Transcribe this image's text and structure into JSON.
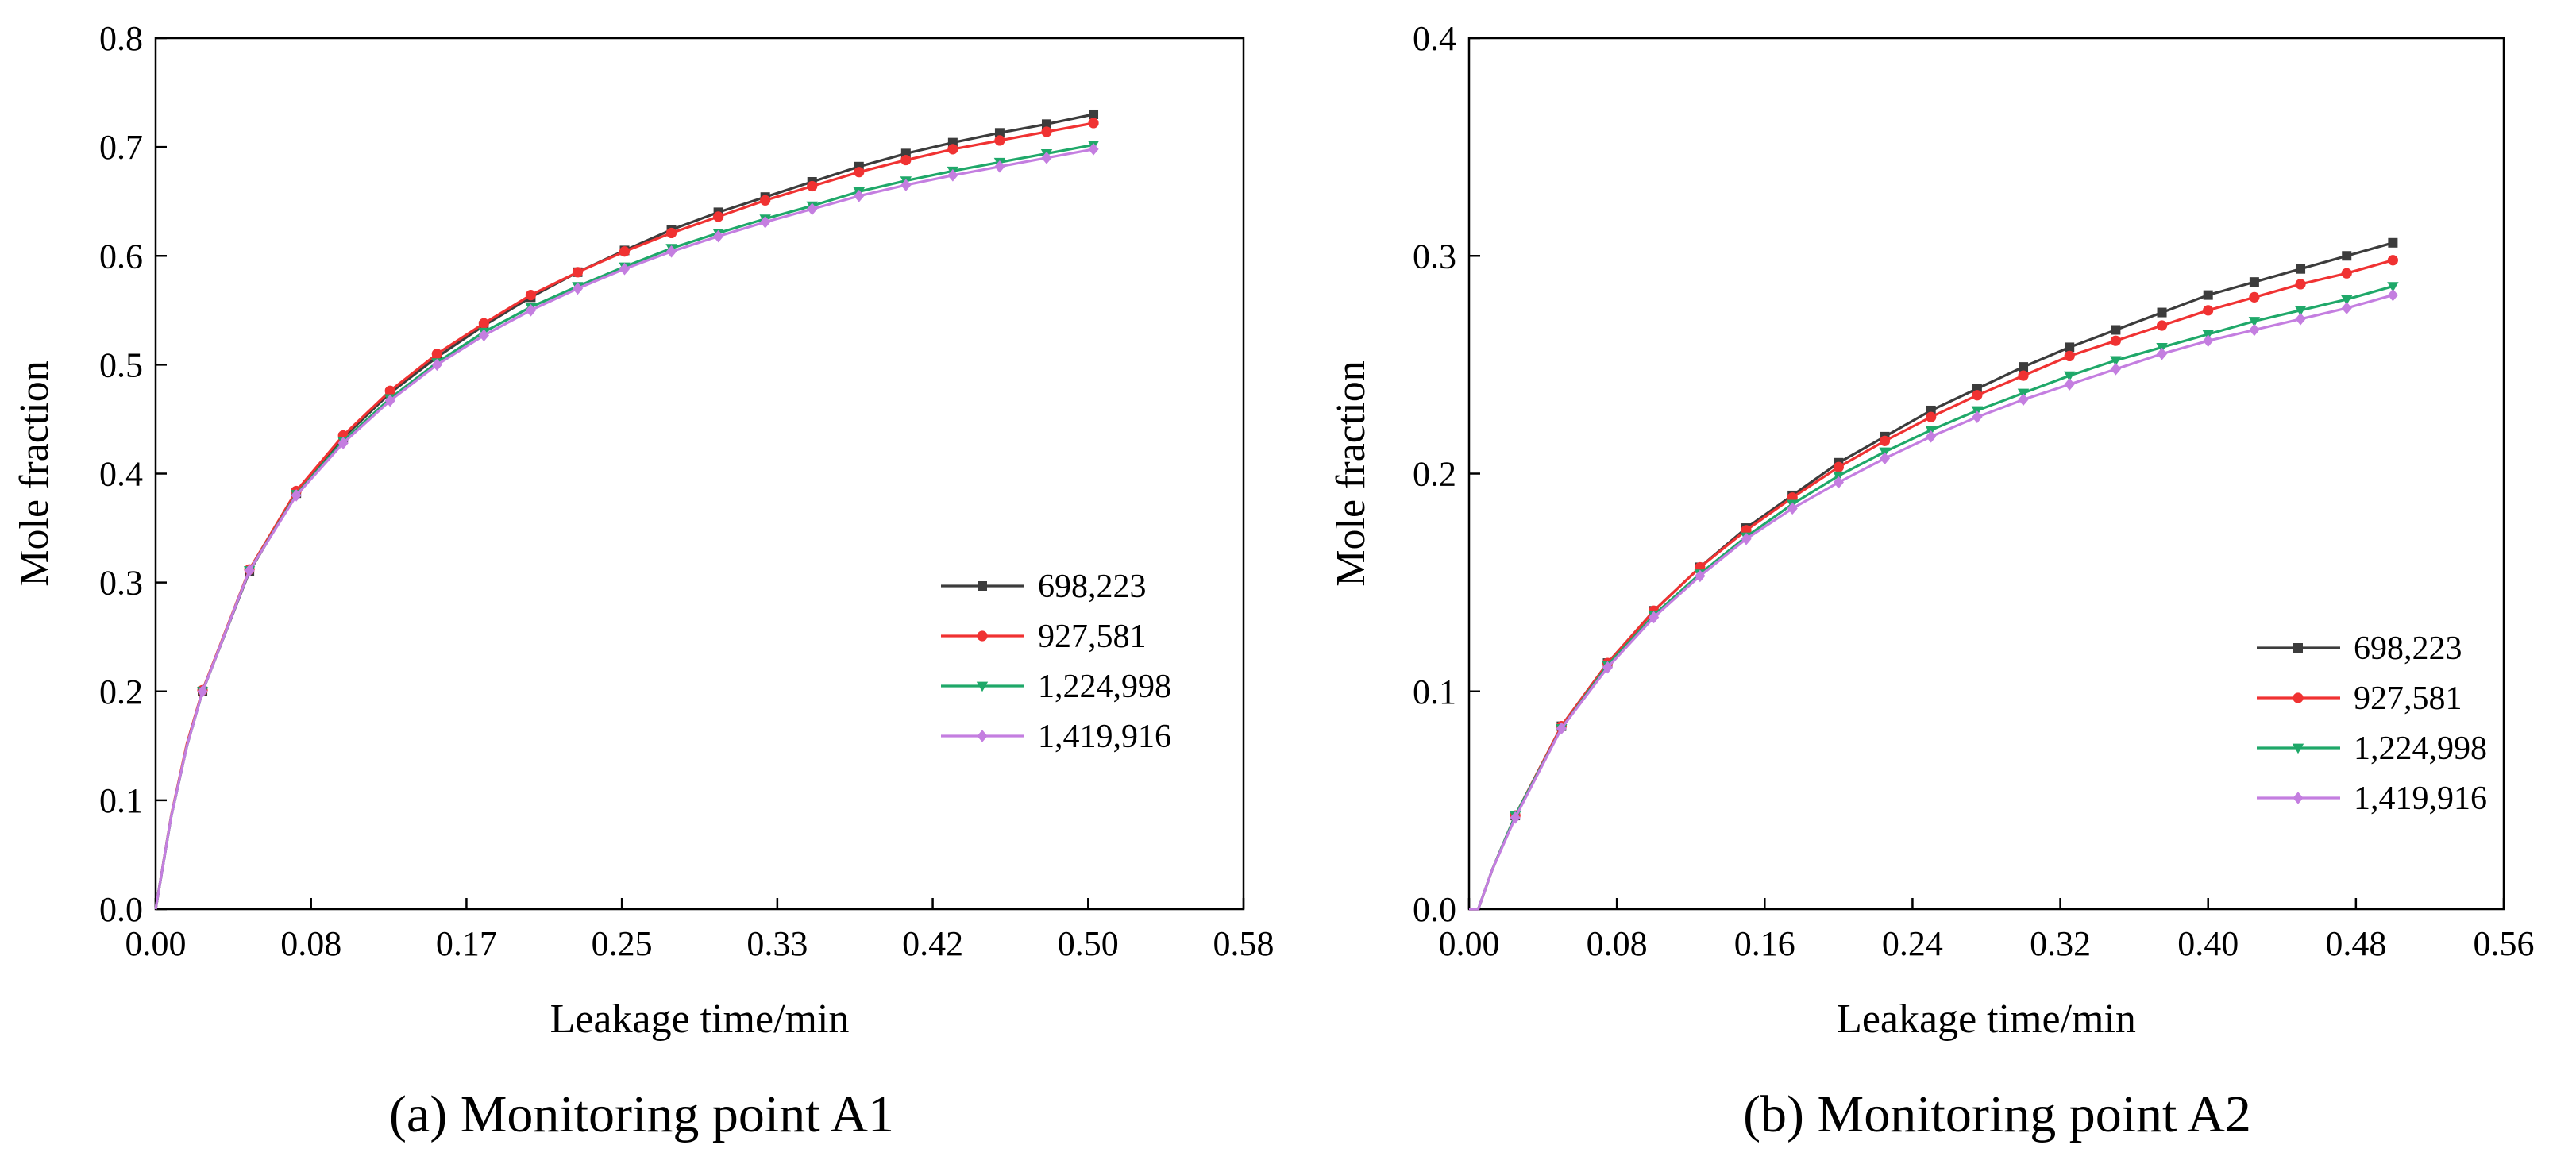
{
  "figure": {
    "captions": [
      "(a) Monitoring point A1",
      "(b) Monitoring point A2"
    ]
  },
  "chart_data": [
    {
      "type": "line",
      "title": "",
      "caption": "(a) Monitoring point A1",
      "xlabel": "Leakage time/min",
      "ylabel": "Mole fraction",
      "xlim": [
        0.0,
        0.58
      ],
      "ylim": [
        0.0,
        0.8
      ],
      "xticks": [
        "0.00",
        "0.08",
        "0.17",
        "0.25",
        "0.33",
        "0.42",
        "0.50",
        "0.58"
      ],
      "yticks": [
        "0.0",
        "0.1",
        "0.2",
        "0.3",
        "0.4",
        "0.5",
        "0.6",
        "0.7",
        "0.8"
      ],
      "legend_position": "bottom-right",
      "x": [
        0.0,
        0.0083,
        0.0167,
        0.025,
        0.05,
        0.075,
        0.1,
        0.125,
        0.15,
        0.175,
        0.2,
        0.225,
        0.25,
        0.275,
        0.3,
        0.325,
        0.35,
        0.375,
        0.4,
        0.425,
        0.45,
        0.475,
        0.5
      ],
      "series": [
        {
          "name": "698,223",
          "color": "#3c3c3c",
          "marker": "square",
          "values": [
            0.0,
            0.085,
            0.15,
            0.2,
            0.31,
            0.382,
            0.433,
            0.474,
            0.507,
            0.536,
            0.562,
            0.585,
            0.605,
            0.624,
            0.64,
            0.654,
            0.668,
            0.682,
            0.694,
            0.704,
            0.713,
            0.721,
            0.73
          ]
        },
        {
          "name": "927,581",
          "color": "#f03232",
          "marker": "circle",
          "values": [
            0.0,
            0.086,
            0.152,
            0.201,
            0.312,
            0.384,
            0.435,
            0.476,
            0.51,
            0.538,
            0.564,
            0.585,
            0.604,
            0.621,
            0.636,
            0.651,
            0.664,
            0.677,
            0.688,
            0.698,
            0.706,
            0.714,
            0.722
          ]
        },
        {
          "name": "1,224,998",
          "color": "#1fa869",
          "marker": "triangle-down",
          "values": [
            0.0,
            0.085,
            0.15,
            0.2,
            0.311,
            0.381,
            0.43,
            0.469,
            0.502,
            0.53,
            0.553,
            0.572,
            0.59,
            0.607,
            0.621,
            0.634,
            0.646,
            0.659,
            0.669,
            0.678,
            0.686,
            0.694,
            0.702
          ]
        },
        {
          "name": "1,419,916",
          "color": "#c47ee0",
          "marker": "diamond",
          "values": [
            0.0,
            0.085,
            0.15,
            0.2,
            0.311,
            0.38,
            0.428,
            0.467,
            0.5,
            0.527,
            0.55,
            0.57,
            0.588,
            0.604,
            0.618,
            0.631,
            0.643,
            0.655,
            0.665,
            0.674,
            0.682,
            0.69,
            0.698
          ]
        }
      ]
    },
    {
      "type": "line",
      "title": "",
      "caption": "(b) Monitoring point A2",
      "xlabel": "Leakage time/min",
      "ylabel": "Mole fraction",
      "xlim": [
        0.0,
        0.56
      ],
      "ylim": [
        0.0,
        0.4
      ],
      "xticks": [
        "0.00",
        "0.08",
        "0.16",
        "0.24",
        "0.32",
        "0.40",
        "0.48",
        "0.56"
      ],
      "yticks": [
        "0.0",
        "0.1",
        "0.2",
        "0.3",
        "0.4"
      ],
      "legend_position": "bottom-right",
      "x": [
        0.0,
        0.005,
        0.0125,
        0.025,
        0.05,
        0.075,
        0.1,
        0.125,
        0.15,
        0.175,
        0.2,
        0.225,
        0.25,
        0.275,
        0.3,
        0.325,
        0.35,
        0.375,
        0.4,
        0.425,
        0.45,
        0.475,
        0.5
      ],
      "series": [
        {
          "name": "698,223",
          "color": "#3c3c3c",
          "marker": "square",
          "values": [
            0.0,
            0.0,
            0.018,
            0.043,
            0.084,
            0.113,
            0.137,
            0.157,
            0.175,
            0.19,
            0.205,
            0.217,
            0.229,
            0.239,
            0.249,
            0.258,
            0.266,
            0.274,
            0.282,
            0.288,
            0.294,
            0.3,
            0.306
          ]
        },
        {
          "name": "927,581",
          "color": "#f03232",
          "marker": "circle",
          "values": [
            0.0,
            0.0,
            0.018,
            0.043,
            0.084,
            0.113,
            0.137,
            0.157,
            0.174,
            0.189,
            0.203,
            0.215,
            0.226,
            0.236,
            0.245,
            0.254,
            0.261,
            0.268,
            0.275,
            0.281,
            0.287,
            0.292,
            0.298
          ]
        },
        {
          "name": "1,224,998",
          "color": "#1fa869",
          "marker": "triangle-down",
          "values": [
            0.0,
            0.0,
            0.018,
            0.043,
            0.083,
            0.112,
            0.135,
            0.154,
            0.171,
            0.186,
            0.199,
            0.21,
            0.22,
            0.229,
            0.237,
            0.245,
            0.252,
            0.258,
            0.264,
            0.27,
            0.275,
            0.28,
            0.286
          ]
        },
        {
          "name": "1,419,916",
          "color": "#c47ee0",
          "marker": "diamond",
          "values": [
            0.0,
            0.0,
            0.018,
            0.042,
            0.083,
            0.111,
            0.134,
            0.153,
            0.17,
            0.184,
            0.196,
            0.207,
            0.217,
            0.226,
            0.234,
            0.241,
            0.248,
            0.255,
            0.261,
            0.266,
            0.271,
            0.276,
            0.282
          ]
        }
      ]
    }
  ]
}
